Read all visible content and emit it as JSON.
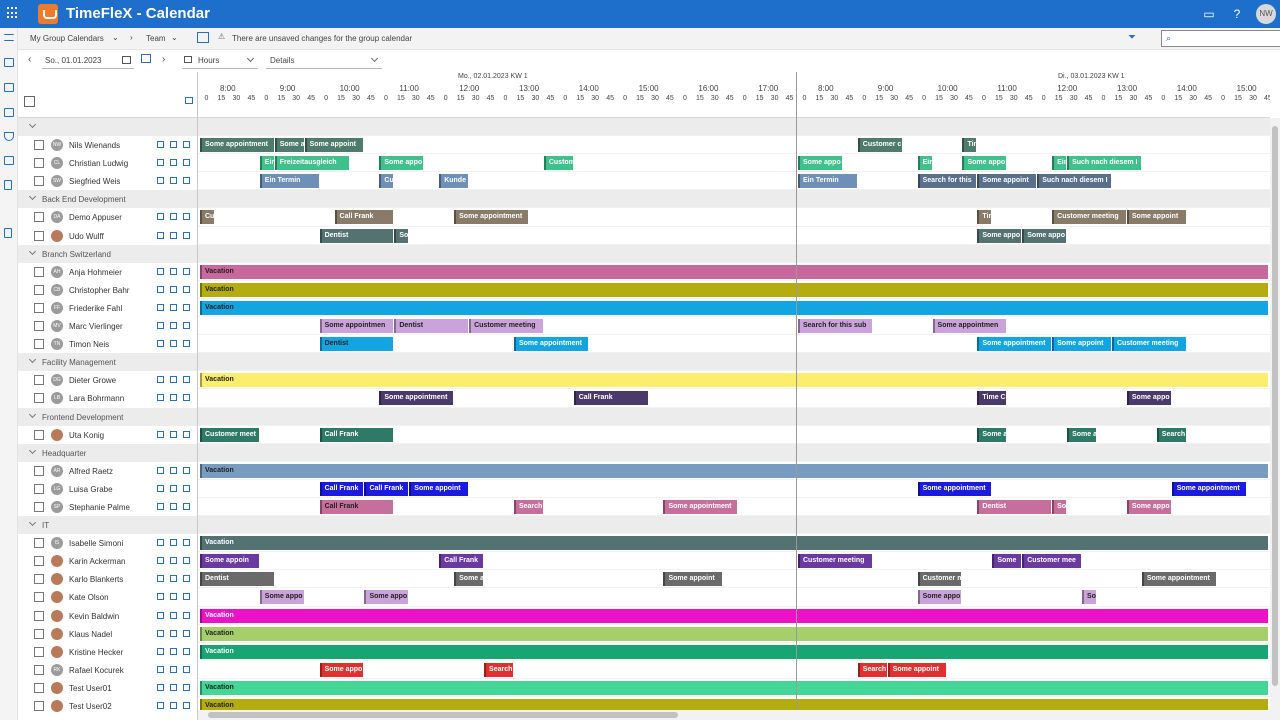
{
  "app": {
    "title": "TimeFleX - Calendar",
    "user_initials": "NW"
  },
  "cmdbar": {
    "calendar": "My Group Calendars",
    "team": "Team",
    "notice": "There are unsaved changes for the group calendar",
    "search_placeholder": ""
  },
  "toolbar": {
    "date": "So., 01.01.2023",
    "view": "Hours",
    "mode": "Details"
  },
  "header": {
    "days": [
      {
        "label": "Mo., 02.01.2023 KW 1",
        "start_hour": 8
      },
      {
        "label": "Di., 03.01.2023 KW 1",
        "start_hour": 8
      }
    ],
    "hour_labels": [
      "8:00",
      "9:00",
      "10:00",
      "11:00",
      "12:00",
      "13:00",
      "14:00",
      "15:00",
      "16:00",
      "17:00",
      "8:00",
      "9:00",
      "10:00",
      "11:00",
      "12:00",
      "13:00",
      "14:00",
      "15:00"
    ],
    "minute_labels": [
      "0",
      "15",
      "30",
      "45"
    ]
  },
  "colors": {
    "topbar": "#1e6fcb",
    "accent": "#2a6ec4"
  },
  "rows": [
    {
      "type": "group",
      "label": ""
    },
    {
      "type": "person",
      "name": "Nils Wienands",
      "initials": "NW",
      "events": [
        {
          "t": "Some appointment",
          "s": 0,
          "e": 1.25,
          "c": "#4e7b6c"
        },
        {
          "t": "Some a",
          "s": 1.25,
          "e": 1.75,
          "c": "#4e7b6c"
        },
        {
          "t": "Some appoint",
          "s": 1.75,
          "e": 2.75,
          "c": "#4e7b6c"
        },
        {
          "t": "Customer c",
          "s": 11,
          "e": 11.75,
          "c": "#4e7b6c"
        },
        {
          "t": "Tim",
          "s": 12.75,
          "e": 13,
          "c": "#4e7b6c"
        }
      ]
    },
    {
      "type": "person",
      "name": "Christian Ludwig",
      "initials": "CL",
      "events": [
        {
          "t": "Ein",
          "s": 1,
          "e": 1.25,
          "c": "#40c08a"
        },
        {
          "t": "Freizeitausgleich",
          "s": 1.25,
          "e": 2.5,
          "c": "#40c08a"
        },
        {
          "t": "Some appo",
          "s": 3,
          "e": 3.75,
          "c": "#40c08a"
        },
        {
          "t": "Custom",
          "s": 5.75,
          "e": 6.25,
          "c": "#40c08a"
        },
        {
          "t": "Some appo",
          "s": 10,
          "e": 10.75,
          "c": "#40c08a"
        },
        {
          "t": "Ein",
          "s": 12,
          "e": 12.25,
          "c": "#40c08a"
        },
        {
          "t": "Some appo",
          "s": 12.75,
          "e": 13.5,
          "c": "#40c08a"
        },
        {
          "t": "Ein",
          "s": 14.25,
          "e": 14.5,
          "c": "#40c08a"
        },
        {
          "t": "Such nach diesem I",
          "s": 14.5,
          "e": 15.75,
          "c": "#40c08a"
        }
      ]
    },
    {
      "type": "person",
      "name": "Siegfried Weis",
      "initials": "SW",
      "events": [
        {
          "t": "Ein Termin",
          "s": 1,
          "e": 2,
          "c": "#6d8fb8"
        },
        {
          "t": "Cu",
          "s": 3,
          "e": 3.25,
          "c": "#6d8fb8"
        },
        {
          "t": "Kunde",
          "s": 4,
          "e": 4.5,
          "c": "#6d8fb8"
        },
        {
          "t": "Ein Termin",
          "s": 10,
          "e": 11,
          "c": "#6d8fb8"
        },
        {
          "t": "Search for this",
          "s": 12,
          "e": 13,
          "c": "#5a6f8c"
        },
        {
          "t": "Some appoint",
          "s": 13,
          "e": 14,
          "c": "#5a6f8c"
        },
        {
          "t": "Such nach diesem I",
          "s": 14,
          "e": 15.25,
          "c": "#5a6f8c"
        }
      ]
    },
    {
      "type": "group",
      "label": "Back End Development"
    },
    {
      "type": "person",
      "name": "Demo Appuser",
      "initials": "DA",
      "events": [
        {
          "t": "Cu",
          "s": 0,
          "e": 0.25,
          "c": "#8a7a68"
        },
        {
          "t": "Call Frank",
          "s": 2.25,
          "e": 3.25,
          "c": "#8a7a68"
        },
        {
          "t": "Some appointment",
          "s": 4.25,
          "e": 5.5,
          "c": "#8a7a68"
        },
        {
          "t": "Tir",
          "s": 13,
          "e": 13.25,
          "c": "#8a7a68"
        },
        {
          "t": "Customer meeting",
          "s": 14.25,
          "e": 15.5,
          "c": "#8a7a68"
        },
        {
          "t": "Some appoint",
          "s": 15.5,
          "e": 16.5,
          "c": "#8a7a68"
        }
      ]
    },
    {
      "type": "person",
      "name": "Udo Wulff",
      "initials": "UW",
      "photo": true,
      "events": [
        {
          "t": "Dentist",
          "s": 2,
          "e": 3.25,
          "c": "#557272"
        },
        {
          "t": "So",
          "s": 3.25,
          "e": 3.5,
          "c": "#557272"
        },
        {
          "t": "Some appo",
          "s": 13,
          "e": 13.75,
          "c": "#557272"
        },
        {
          "t": "Some appo",
          "s": 13.75,
          "e": 14.5,
          "c": "#557272"
        }
      ]
    },
    {
      "type": "group",
      "label": "Branch Switzerland"
    },
    {
      "type": "person",
      "name": "Anja Hohmeier",
      "initials": "AH",
      "events": [
        {
          "t": "Vacation",
          "s": 0,
          "e": 18,
          "c": "#c8699e",
          "dark": true
        }
      ]
    },
    {
      "type": "person",
      "name": "Christopher Bahr",
      "initials": "CB",
      "events": [
        {
          "t": "Vacation",
          "s": 0,
          "e": 18,
          "c": "#b5ad10",
          "dark": true
        }
      ]
    },
    {
      "type": "person",
      "name": "Friederike Fahl",
      "initials": "FF",
      "events": [
        {
          "t": "Vacation",
          "s": 0,
          "e": 18,
          "c": "#13a5e1",
          "dark": true
        }
      ]
    },
    {
      "type": "person",
      "name": "Marc Vierlinger",
      "initials": "MV",
      "events": [
        {
          "t": "Some appointmen",
          "s": 2,
          "e": 3.25,
          "c": "#c9a3d9",
          "dark": true
        },
        {
          "t": "Dentist",
          "s": 3.25,
          "e": 4.5,
          "c": "#c9a3d9",
          "dark": true
        },
        {
          "t": "Customer meeting",
          "s": 4.5,
          "e": 5.75,
          "c": "#c9a3d9",
          "dark": true
        },
        {
          "t": "Search for this sub",
          "s": 10,
          "e": 11.25,
          "c": "#c9a3d9",
          "dark": true
        },
        {
          "t": "Some appointmen",
          "s": 12.25,
          "e": 13.5,
          "c": "#c9a3d9",
          "dark": true
        }
      ]
    },
    {
      "type": "person",
      "name": "Timon Neis",
      "initials": "TN",
      "events": [
        {
          "t": "Dentist",
          "s": 2,
          "e": 3.25,
          "c": "#13a5e1",
          "dark": true
        },
        {
          "t": "Some appointment",
          "s": 5.25,
          "e": 6.5,
          "c": "#13a5e1"
        },
        {
          "t": "Some appointment",
          "s": 13,
          "e": 14.25,
          "c": "#13a5e1"
        },
        {
          "t": "Some appoint",
          "s": 14.25,
          "e": 15.25,
          "c": "#13a5e1"
        },
        {
          "t": "Customer meeting",
          "s": 15.25,
          "e": 16.5,
          "c": "#13a5e1"
        }
      ]
    },
    {
      "type": "group",
      "label": "Facility Management"
    },
    {
      "type": "person",
      "name": "Dieter Growe",
      "initials": "DG",
      "events": [
        {
          "t": "Vacation",
          "s": 0,
          "e": 18,
          "c": "#fbee6e",
          "dark": true
        }
      ]
    },
    {
      "type": "person",
      "name": "Lara Bohrmann",
      "initials": "LB",
      "events": [
        {
          "t": "Some appointment",
          "s": 3,
          "e": 4.25,
          "c": "#4a3a6a"
        },
        {
          "t": "Call Frank",
          "s": 6.25,
          "e": 7.5,
          "c": "#4a3a6a"
        },
        {
          "t": "Time C",
          "s": 13,
          "e": 13.5,
          "c": "#4a3a6a"
        },
        {
          "t": "Some appo",
          "s": 15.5,
          "e": 16.25,
          "c": "#4a3a6a"
        }
      ]
    },
    {
      "type": "group",
      "label": "Frontend Development"
    },
    {
      "type": "person",
      "name": "Uta Konig",
      "initials": "UK",
      "photo": true,
      "events": [
        {
          "t": "Customer meet",
          "s": 0,
          "e": 1,
          "c": "#2f7a66"
        },
        {
          "t": "Call Frank",
          "s": 2,
          "e": 3.25,
          "c": "#2f7a66"
        },
        {
          "t": "Some a",
          "s": 13,
          "e": 13.5,
          "c": "#2f7a66"
        },
        {
          "t": "Some a",
          "s": 14.5,
          "e": 15,
          "c": "#2f7a66"
        },
        {
          "t": "Search",
          "s": 16,
          "e": 16.5,
          "c": "#2f7a66"
        }
      ]
    },
    {
      "type": "group",
      "label": "Headquarter"
    },
    {
      "type": "person",
      "name": "Alfred Raetz",
      "initials": "AR",
      "events": [
        {
          "t": "Vacation",
          "s": 0,
          "e": 18,
          "c": "#789cc0",
          "dark": true
        }
      ]
    },
    {
      "type": "person",
      "name": "Luisa Grabe",
      "initials": "LG",
      "events": [
        {
          "t": "Call Frank",
          "s": 2,
          "e": 2.75,
          "c": "#1a1ae0"
        },
        {
          "t": "Call Frank",
          "s": 2.75,
          "e": 3.5,
          "c": "#1a1ae0"
        },
        {
          "t": "Some appoint",
          "s": 3.5,
          "e": 4.5,
          "c": "#1a1ae0"
        },
        {
          "t": "Some appointment",
          "s": 12,
          "e": 13.25,
          "c": "#1a1ae0"
        },
        {
          "t": "Some appointment",
          "s": 16.25,
          "e": 17.5,
          "c": "#1a1ae0"
        }
      ]
    },
    {
      "type": "person",
      "name": "Stephanie Palme",
      "initials": "SP",
      "events": [
        {
          "t": "Call Frank",
          "s": 2,
          "e": 3.25,
          "c": "#c76f9c",
          "dark": true
        },
        {
          "t": "Search",
          "s": 5.25,
          "e": 5.75,
          "c": "#c76f9c"
        },
        {
          "t": "Some appointment",
          "s": 7.75,
          "e": 9,
          "c": "#c76f9c"
        },
        {
          "t": "Dentist",
          "s": 13,
          "e": 14.25,
          "c": "#c76f9c"
        },
        {
          "t": "So",
          "s": 14.25,
          "e": 14.5,
          "c": "#c76f9c"
        },
        {
          "t": "Some appo",
          "s": 15.5,
          "e": 16.25,
          "c": "#c76f9c"
        }
      ]
    },
    {
      "type": "group",
      "label": "IT"
    },
    {
      "type": "person",
      "name": "Isabelle Simoni",
      "initials": "IS",
      "events": [
        {
          "t": "Vacation",
          "s": 0,
          "e": 18,
          "c": "#547272"
        }
      ]
    },
    {
      "type": "person",
      "name": "Karin Ackerman",
      "initials": "KA",
      "photo": true,
      "events": [
        {
          "t": "Some appoin",
          "s": 0,
          "e": 1,
          "c": "#6a3aa0"
        },
        {
          "t": "Call Frank",
          "s": 4,
          "e": 4.75,
          "c": "#6a3aa0"
        },
        {
          "t": "Customer meeting",
          "s": 10,
          "e": 11.25,
          "c": "#6a3aa0"
        },
        {
          "t": "Some",
          "s": 13.25,
          "e": 13.75,
          "c": "#6a3aa0"
        },
        {
          "t": "Customer mee",
          "s": 13.75,
          "e": 14.75,
          "c": "#6a3aa0"
        }
      ]
    },
    {
      "type": "person",
      "name": "Karlo Blankerts",
      "initials": "KB",
      "photo": true,
      "events": [
        {
          "t": "Dentist",
          "s": 0,
          "e": 1.25,
          "c": "#6a6a6a"
        },
        {
          "t": "Some a",
          "s": 4.25,
          "e": 4.75,
          "c": "#6a6a6a"
        },
        {
          "t": "Some appoint",
          "s": 7.75,
          "e": 8.75,
          "c": "#6a6a6a"
        },
        {
          "t": "Customer m",
          "s": 12,
          "e": 12.75,
          "c": "#6a6a6a"
        },
        {
          "t": "Some appointment",
          "s": 15.75,
          "e": 17,
          "c": "#6a6a6a"
        }
      ]
    },
    {
      "type": "person",
      "name": "Kate Olson",
      "initials": "KO",
      "photo": true,
      "events": [
        {
          "t": "Some appo",
          "s": 1,
          "e": 1.75,
          "c": "#c9a3d9",
          "dark": true
        },
        {
          "t": "Some appo",
          "s": 2.75,
          "e": 3.5,
          "c": "#c9a3d9",
          "dark": true
        },
        {
          "t": "Some appo",
          "s": 12,
          "e": 12.75,
          "c": "#c9a3d9",
          "dark": true
        },
        {
          "t": "So",
          "s": 14.75,
          "e": 15,
          "c": "#c9a3d9",
          "dark": true
        }
      ]
    },
    {
      "type": "person",
      "name": "Kevin Baldwin",
      "initials": "KB",
      "photo": true,
      "events": [
        {
          "t": "Vacation",
          "s": 0,
          "e": 18,
          "c": "#ec12c8"
        }
      ]
    },
    {
      "type": "person",
      "name": "Klaus Nadel",
      "initials": "KN",
      "photo": true,
      "events": [
        {
          "t": "Vacation",
          "s": 0,
          "e": 18,
          "c": "#a4cf6a",
          "dark": true
        }
      ]
    },
    {
      "type": "person",
      "name": "Kristine Hecker",
      "initials": "KH",
      "photo": true,
      "events": [
        {
          "t": "Vacation",
          "s": 0,
          "e": 18,
          "c": "#16a573"
        }
      ]
    },
    {
      "type": "person",
      "name": "Rafael Kocurek",
      "initials": "RK",
      "events": [
        {
          "t": "Some appo",
          "s": 2,
          "e": 2.75,
          "c": "#e23030"
        },
        {
          "t": "Search",
          "s": 4.75,
          "e": 5.25,
          "c": "#e23030"
        },
        {
          "t": "Search",
          "s": 11,
          "e": 11.5,
          "c": "#e23030"
        },
        {
          "t": "Some appoint",
          "s": 11.5,
          "e": 12.5,
          "c": "#e23030"
        }
      ]
    },
    {
      "type": "person",
      "name": "Test User01",
      "initials": "TU",
      "photo": true,
      "events": [
        {
          "t": "Vacation",
          "s": 0,
          "e": 18,
          "c": "#43d696",
          "dark": true
        }
      ]
    },
    {
      "type": "person",
      "name": "Test User02",
      "initials": "TU",
      "photo": true,
      "events": [
        {
          "t": "Vacation",
          "s": 0,
          "e": 18,
          "c": "#b5ad10",
          "dark": true
        }
      ]
    }
  ]
}
